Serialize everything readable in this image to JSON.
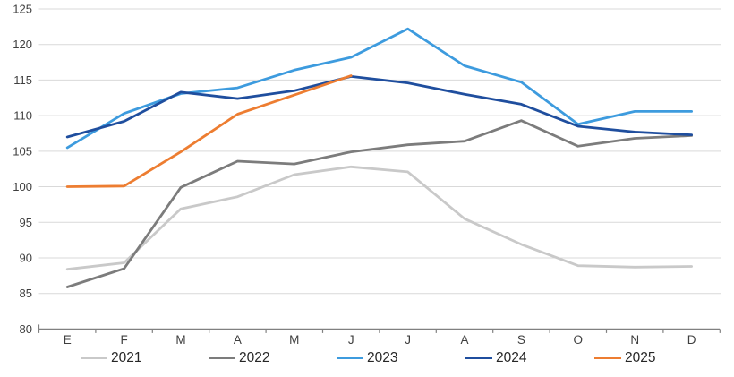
{
  "chart_data": {
    "type": "line",
    "title": "",
    "xlabel": "",
    "ylabel": "",
    "categories": [
      "E",
      "F",
      "M",
      "A",
      "M",
      "J",
      "J",
      "A",
      "S",
      "O",
      "N",
      "D"
    ],
    "y_ticks": [
      80,
      85,
      90,
      95,
      100,
      105,
      110,
      115,
      120,
      125
    ],
    "ylim": [
      80,
      125
    ],
    "grid": "horizontal-only",
    "legend_position": "bottom",
    "series": [
      {
        "name": "2021",
        "color": "#C9C9C9",
        "values": [
          88.4,
          89.3,
          96.9,
          98.6,
          101.7,
          102.8,
          102.1,
          95.5,
          91.9,
          88.9,
          88.7,
          88.8
        ]
      },
      {
        "name": "2022",
        "color": "#7C7C7C",
        "values": [
          85.9,
          88.5,
          99.9,
          103.6,
          103.2,
          104.9,
          105.9,
          106.4,
          109.3,
          105.7,
          106.8,
          107.2
        ]
      },
      {
        "name": "2023",
        "color": "#3D9BDE",
        "values": [
          105.5,
          110.3,
          113.1,
          113.9,
          116.4,
          118.2,
          122.2,
          117.0,
          114.7,
          108.8,
          110.6,
          110.6
        ]
      },
      {
        "name": "2024",
        "color": "#1F4E9E",
        "values": [
          107.0,
          109.2,
          113.3,
          112.4,
          113.5,
          115.5,
          114.6,
          113.0,
          111.6,
          108.5,
          107.7,
          107.3
        ]
      },
      {
        "name": "2025",
        "color": "#ED7D31",
        "values": [
          100.0,
          100.1,
          104.9,
          110.2,
          112.9,
          115.6,
          null,
          null,
          null,
          null,
          null,
          null
        ]
      }
    ]
  },
  "colors": {
    "background": "#FFFFFF",
    "gridline": "#D9D9D9",
    "axis_line": "#808080",
    "tick_label": "#3F3F3F",
    "legend_text": "#262626"
  }
}
